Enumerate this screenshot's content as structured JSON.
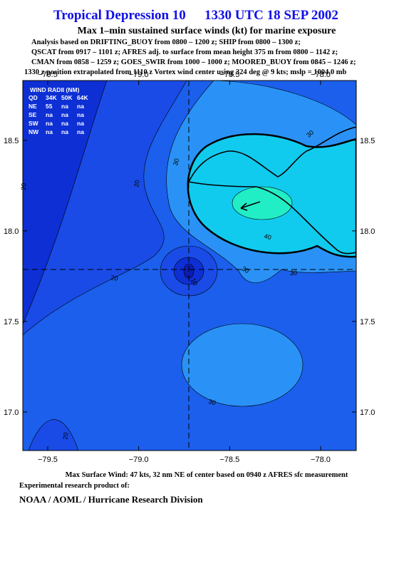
{
  "header": {
    "title": "Tropical Depression 10",
    "datetime": "1330 UTC 18 SEP 2002",
    "subtitle": "Max 1–min sustained surface winds (kt) for marine exposure",
    "analysis": [
      "Analysis based on  DRIFTING_BUOY from 0800 – 1200 z;  SHIP from 0800 – 1300 z;",
      "QSCAT from 0917 – 1101 z;  AFRES adj. to surface from mean height 375 m from 0800 – 1142 z;",
      "CMAN from 0858 – 1259 z;  GOES_SWIR from 1000 – 1000 z;  MOORED_BUOY from 0845 – 1246 z;",
      "1330 z position extrapolated from 1110 z Vortex wind center using 324 deg @ 9 kts; mslp = 1004.0 mb"
    ]
  },
  "map": {
    "xlim": [
      -79.637,
      -77.804
    ],
    "ylim": [
      16.787,
      18.83
    ],
    "xticks": [
      {
        "value": -79.5,
        "label": "−79.5"
      },
      {
        "value": -79.0,
        "label": "−79.0"
      },
      {
        "value": -78.5,
        "label": "−78.5"
      },
      {
        "value": -78.0,
        "label": "−78.0"
      }
    ],
    "yticks": [
      {
        "value": 18.5,
        "label": "18.5"
      },
      {
        "value": 18.0,
        "label": "18.0"
      },
      {
        "value": 17.5,
        "label": "17.5"
      },
      {
        "value": 17.0,
        "label": "17.0"
      }
    ],
    "contour_labels": [
      "30",
      "20",
      "30",
      "40",
      "30",
      "10",
      "20",
      "30",
      "30",
      "20",
      "20"
    ]
  },
  "wind_radii": {
    "title": "WIND RADII (NM)",
    "header": [
      "QD",
      "34K",
      "50K",
      "64K"
    ],
    "rows": [
      [
        "NE",
        "55",
        "na",
        "na"
      ],
      [
        "SE",
        "na",
        "na",
        "na"
      ],
      [
        "SW",
        "na",
        "na",
        "na"
      ],
      [
        "NW",
        "na",
        "na",
        "na"
      ]
    ]
  },
  "footer": {
    "max_wind": "Max Surface Wind: 47 kts, 32 nm NE of center based on 0940 z AFRES sfc measurement",
    "credit": "Experimental research product of:",
    "org": "NOAA / AOML / Hurricane Research Division"
  }
}
